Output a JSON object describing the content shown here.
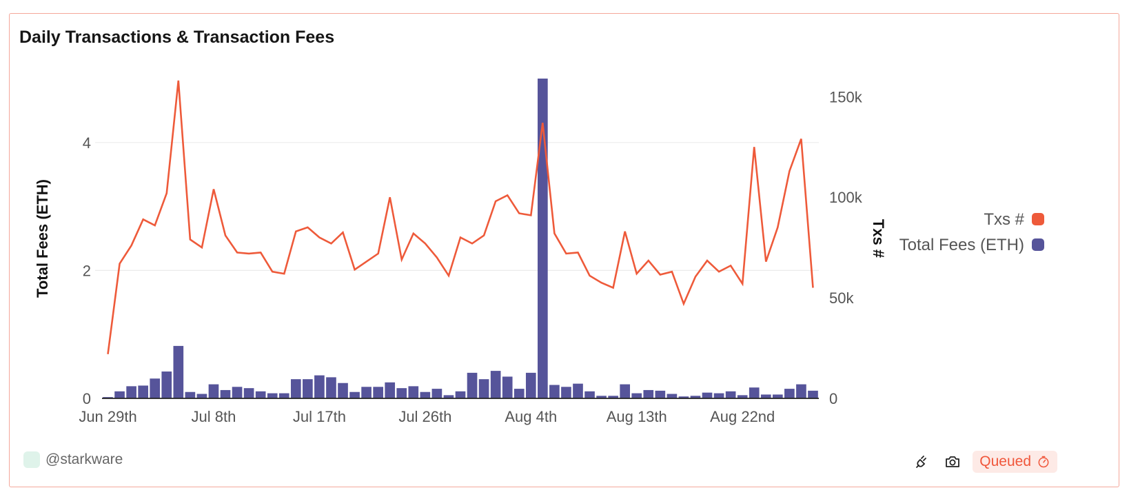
{
  "title": "Daily Transactions & Transaction Fees",
  "footer": {
    "username": "@starkware",
    "status": "Queued",
    "icons": [
      "plug-icon",
      "camera-icon",
      "timer-icon"
    ]
  },
  "colors": {
    "txs": "#ee5a3a",
    "fees": "#56549a",
    "border": "#f4a79a",
    "grid": "#ebebeb"
  },
  "chart_data": {
    "type": "bar+line",
    "title": "Daily Transactions & Transaction Fees",
    "x_tick_labels": [
      "Jun 29th",
      "Jul 8th",
      "Jul 17th",
      "Jul 26th",
      "Aug 4th",
      "Aug 13th",
      "Aug 22nd"
    ],
    "x_tick_day_index": [
      0,
      9,
      18,
      27,
      36,
      45,
      54
    ],
    "left_axis": {
      "label": "Total Fees (ETH)",
      "ticks": [
        "0",
        "2",
        "4"
      ],
      "tick_values": [
        0,
        2,
        4
      ],
      "range": [
        0,
        5
      ]
    },
    "right_axis": {
      "label": "Txs #",
      "ticks": [
        "0",
        "50k",
        "100k",
        "150k"
      ],
      "tick_values": [
        0,
        50000,
        100000,
        150000
      ],
      "range": [
        0,
        159000
      ]
    },
    "legend": {
      "position": "right",
      "items": [
        {
          "name": "Txs #",
          "series": "txs"
        },
        {
          "name": "Total Fees (ETH)",
          "series": "fees"
        }
      ]
    },
    "grid": true,
    "series": [
      {
        "name": "Total Fees (ETH)",
        "type": "bar",
        "axis": "left",
        "values": [
          0.02,
          0.11,
          0.19,
          0.2,
          0.31,
          0.42,
          0.82,
          0.1,
          0.07,
          0.22,
          0.13,
          0.18,
          0.16,
          0.11,
          0.08,
          0.08,
          0.3,
          0.3,
          0.36,
          0.33,
          0.24,
          0.1,
          0.18,
          0.18,
          0.25,
          0.16,
          0.19,
          0.1,
          0.15,
          0.05,
          0.11,
          0.4,
          0.3,
          0.43,
          0.34,
          0.15,
          0.4,
          5.0,
          0.21,
          0.18,
          0.23,
          0.11,
          0.04,
          0.04,
          0.22,
          0.08,
          0.13,
          0.12,
          0.07,
          0.03,
          0.04,
          0.09,
          0.08,
          0.11,
          0.05,
          0.17,
          0.06,
          0.06,
          0.15,
          0.22,
          0.12
        ]
      },
      {
        "name": "Txs #",
        "type": "line",
        "axis": "right",
        "values": [
          22000,
          67000,
          76000,
          89000,
          86000,
          102000,
          158000,
          79000,
          75000,
          104000,
          81000,
          72500,
          72000,
          72500,
          63000,
          62000,
          83000,
          85000,
          80000,
          77000,
          82500,
          64000,
          68000,
          72000,
          100000,
          69000,
          82000,
          77000,
          70000,
          61000,
          80000,
          77000,
          81000,
          98000,
          101000,
          92000,
          91000,
          137000,
          82000,
          72000,
          72500,
          61000,
          57500,
          55000,
          83000,
          62000,
          68500,
          61500,
          63000,
          47000,
          60500,
          68500,
          63000,
          66000,
          57000,
          125000,
          68000,
          85000,
          113000,
          129000,
          55000
        ]
      }
    ]
  }
}
